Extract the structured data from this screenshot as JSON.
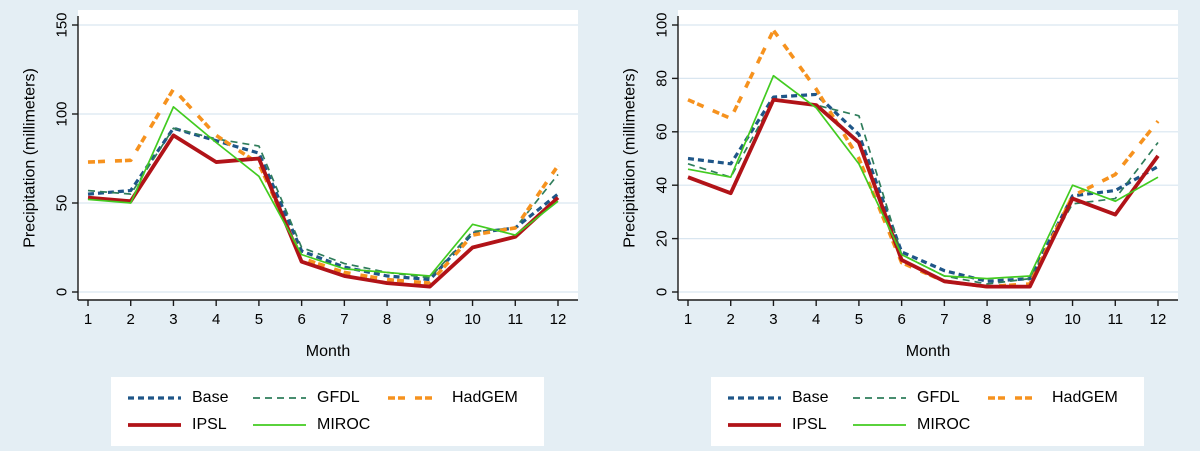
{
  "figure": {
    "background_color": "#e4eef4",
    "plot_background": "#ffffff",
    "grid_color": "#d9e6f0",
    "axis_color": "#1a1a1a",
    "text_color": "#000000"
  },
  "chart_data": [
    {
      "type": "line",
      "panel": "left",
      "title": "",
      "xlabel": "Month",
      "ylabel": "Precipitation (millimeters)",
      "x": [
        1,
        2,
        3,
        4,
        5,
        6,
        7,
        8,
        9,
        10,
        11,
        12
      ],
      "xticks": [
        1,
        2,
        3,
        4,
        5,
        6,
        7,
        8,
        9,
        10,
        11,
        12
      ],
      "ylim": [
        0,
        150
      ],
      "yticks": [
        0,
        50,
        100,
        150
      ],
      "grid": true,
      "legend_position": "bottom",
      "series": [
        {
          "name": "Base",
          "color": "#1f5688",
          "dash": "6 4",
          "width": 3.2,
          "values": [
            55,
            57,
            92,
            85,
            78,
            23,
            14,
            9,
            7,
            33,
            36,
            55
          ]
        },
        {
          "name": "GFDL",
          "color": "#2f7d5b",
          "dash": "7 5",
          "width": 1.7,
          "values": [
            57,
            55,
            92,
            86,
            82,
            25,
            16,
            11,
            8,
            34,
            36,
            66
          ]
        },
        {
          "name": "HadGEM",
          "color": "#f6921e",
          "dash": "7 3 7 10",
          "width": 3.6,
          "values": [
            73,
            74,
            114,
            88,
            72,
            19,
            11,
            7,
            5,
            32,
            36,
            71
          ]
        },
        {
          "name": "IPSL",
          "color": "#b11318",
          "dash": "",
          "width": 3.8,
          "values": [
            53,
            51,
            88,
            73,
            75,
            17,
            9,
            5,
            3,
            25,
            31,
            53
          ]
        },
        {
          "name": "MIROC",
          "color": "#42cb20",
          "dash": "",
          "width": 1.7,
          "values": [
            52,
            50,
            104,
            84,
            65,
            21,
            13,
            11,
            9,
            38,
            32,
            51
          ]
        }
      ]
    },
    {
      "type": "line",
      "panel": "right",
      "title": "",
      "xlabel": "Month",
      "ylabel": "Precipitation (millimeters)",
      "x": [
        1,
        2,
        3,
        4,
        5,
        6,
        7,
        8,
        9,
        10,
        11,
        12
      ],
      "xticks": [
        1,
        2,
        3,
        4,
        5,
        6,
        7,
        8,
        9,
        10,
        11,
        12
      ],
      "ylim": [
        0,
        100
      ],
      "yticks": [
        0,
        20,
        40,
        60,
        80,
        100
      ],
      "grid": true,
      "legend_position": "bottom",
      "series": [
        {
          "name": "Base",
          "color": "#1f5688",
          "dash": "6 4",
          "width": 3.2,
          "values": [
            50,
            48,
            73,
            74,
            59,
            15,
            8,
            4,
            5,
            36,
            38,
            47
          ]
        },
        {
          "name": "GFDL",
          "color": "#2f7d5b",
          "dash": "7 5",
          "width": 1.7,
          "values": [
            48,
            43,
            72,
            70,
            66,
            14,
            6,
            3,
            5,
            33,
            35,
            56
          ]
        },
        {
          "name": "HadGEM",
          "color": "#f6921e",
          "dash": "7 3 7 10",
          "width": 3.6,
          "values": [
            72,
            65,
            98,
            76,
            50,
            11,
            4,
            2,
            3,
            36,
            44,
            64
          ]
        },
        {
          "name": "IPSL",
          "color": "#b11318",
          "dash": "",
          "width": 3.8,
          "values": [
            43,
            37,
            72,
            70,
            56,
            12,
            4,
            2,
            2,
            35,
            29,
            51
          ]
        },
        {
          "name": "MIROC",
          "color": "#42cb20",
          "dash": "",
          "width": 1.7,
          "values": [
            46,
            43,
            81,
            69,
            48,
            14,
            6,
            5,
            6,
            40,
            34,
            43
          ]
        }
      ]
    }
  ]
}
